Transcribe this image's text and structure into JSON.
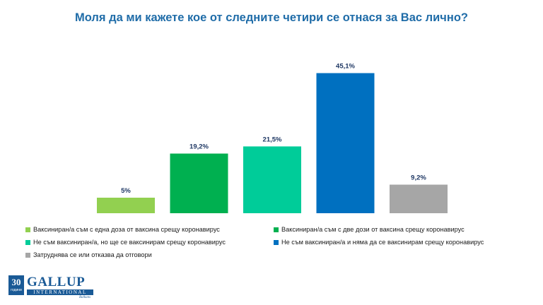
{
  "title": "Моля да ми кажете кое от следните четири се отнася за Вас лично?",
  "chart_data": {
    "type": "bar",
    "title": "Моля да ми кажете кое от следните четири се отнася за Вас лично?",
    "xlabel": "",
    "ylabel": "",
    "ylim": [
      0,
      50
    ],
    "grid": false,
    "legend_position": "bottom",
    "categories": [
      "Ваксиниран/а съм с една доза от ваксина срещу коронавирус",
      "Ваксиниран/а съм с две дози от ваксина срещу коронавирус",
      "Не съм ваксиниран/а, но ще се ваксинирам срещу коронавирус",
      "Не съм ваксиниран/а и няма да се ваксинирам срещу коронавирус",
      "Затруднява се или отказва да отговори"
    ],
    "values": [
      5,
      19.2,
      21.5,
      45.1,
      9.2
    ],
    "value_labels": [
      "5%",
      "19,2%",
      "21,5%",
      "45,1%",
      "9,2%"
    ],
    "colors": [
      "#92d050",
      "#00b050",
      "#00cc99",
      "#0070c0",
      "#a6a6a6"
    ]
  },
  "logo": {
    "number": "30",
    "years": "години",
    "name": "GALLUP",
    "intl": "INTERNATIONAL",
    "region": "Balkans"
  }
}
